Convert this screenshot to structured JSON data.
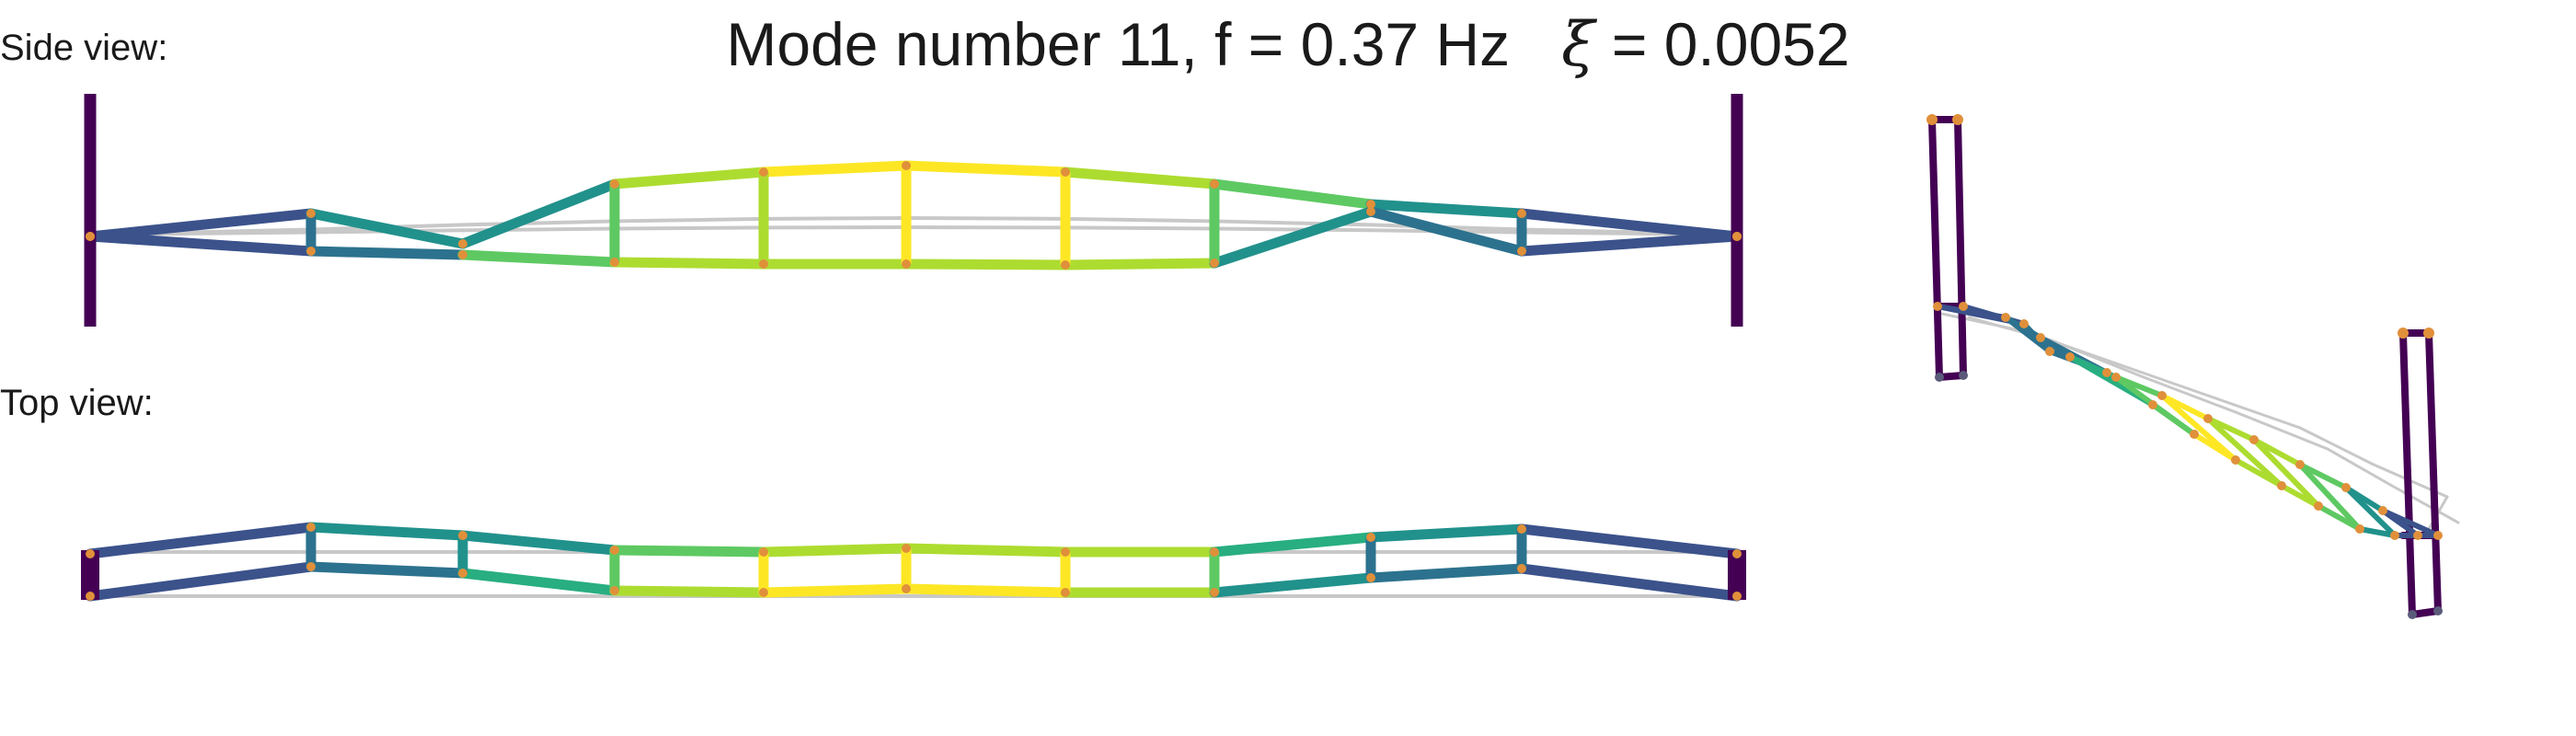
{
  "title": {
    "main": "Mode number 11, f = 0.37 Hz",
    "xi_symbol": "ξ",
    "xi_value": "= 0.0052"
  },
  "panels": {
    "side": {
      "label": "Side view:"
    },
    "top": {
      "label": "Top view:"
    },
    "iso": {
      "label": ""
    }
  },
  "colors": {
    "reference": "#c8c8c8",
    "towers": "#440154",
    "node": "#e0903a",
    "palette": [
      "#3b528b",
      "#2c728e",
      "#21918c",
      "#28ae80",
      "#5ec962",
      "#addc30",
      "#fde725"
    ]
  }
}
